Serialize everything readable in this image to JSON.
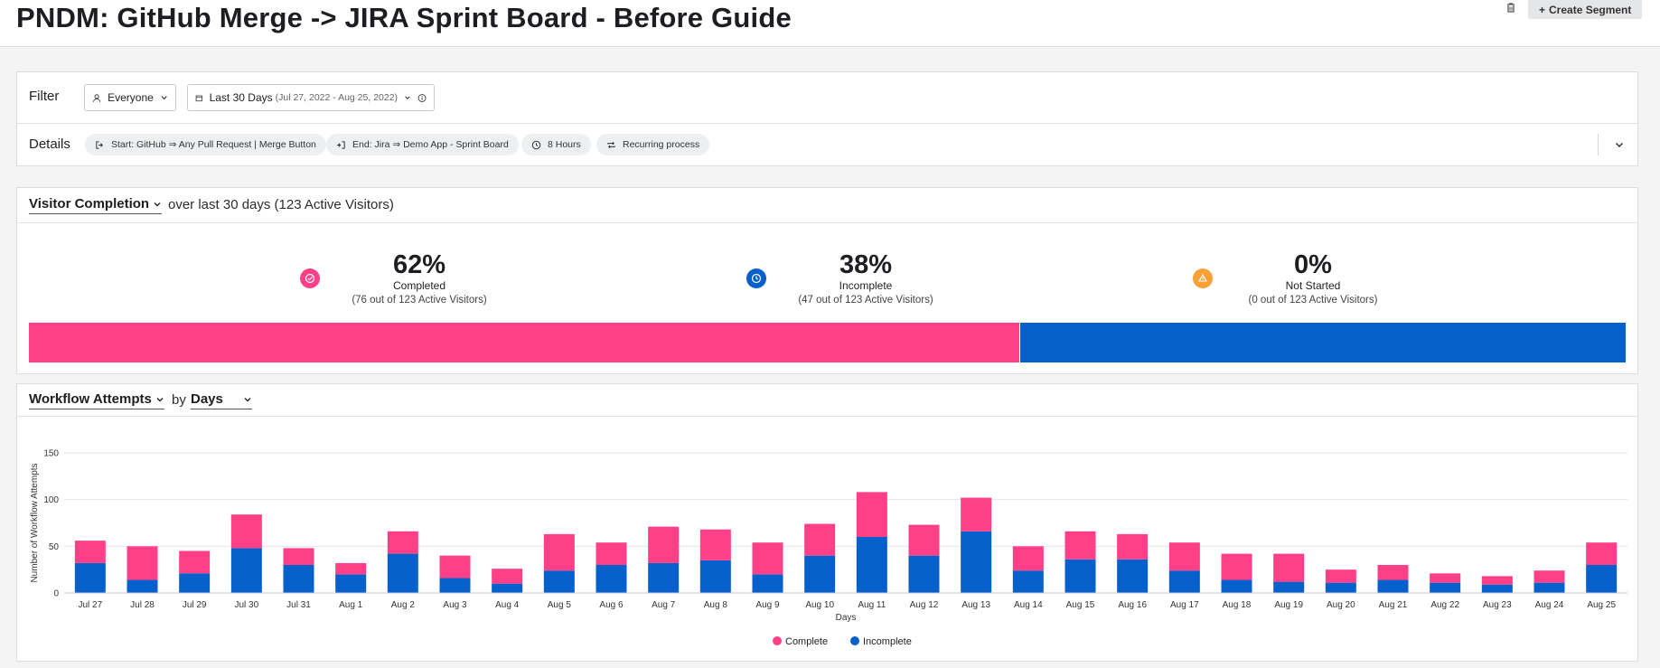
{
  "header": {
    "title": "PNDM: GitHub Merge -> JIRA Sprint Board - Before Guide",
    "create_segment": "Create Segment",
    "trash_icon": "trash-icon"
  },
  "filter": {
    "label": "Filter",
    "segment": "Everyone",
    "date_range": "Last 30 Days",
    "date_detail": "(Jul 27, 2022 - Aug 25, 2022)"
  },
  "details": {
    "label": "Details",
    "start": "Start: GitHub ⇒ Any Pull Request | Merge Button",
    "end": "End: Jira ⇒ Demo App - Sprint Board",
    "duration": "8 Hours",
    "recurring": "Recurring process"
  },
  "visitor_completion": {
    "title": "Visitor Completion",
    "subtitle": "over last 30 days (123 Active Visitors)",
    "stats": [
      {
        "pct": "62%",
        "label": "Completed",
        "sub": "(76 out of 123 Active Visitors)",
        "color": "#ff4088",
        "icon": "check-circle-icon",
        "fraction": 0.62
      },
      {
        "pct": "38%",
        "label": "Incomplete",
        "sub": "(47 out of 123 Active Visitors)",
        "color": "#0660cc",
        "icon": "clock-icon",
        "fraction": 0.38
      },
      {
        "pct": "0%",
        "label": "Not Started",
        "sub": "(0 out of 123 Active Visitors)",
        "color": "#f7a136",
        "icon": "warning-icon",
        "fraction": 0.0
      }
    ]
  },
  "workflow": {
    "title": "Workflow Attempts",
    "by": "by",
    "period": "Days"
  },
  "chart_data": {
    "type": "bar",
    "stacked": true,
    "xlabel": "Days",
    "ylabel": "Number of Workflow Attempts",
    "ylim": [
      0,
      150
    ],
    "yticks": [
      0,
      50,
      100,
      150
    ],
    "grid": true,
    "legend_position": "bottom-center",
    "categories": [
      "Jul 27",
      "Jul 28",
      "Jul 29",
      "Jul 30",
      "Jul 31",
      "Aug 1",
      "Aug 2",
      "Aug 3",
      "Aug 4",
      "Aug 5",
      "Aug 6",
      "Aug 7",
      "Aug 8",
      "Aug 9",
      "Aug 10",
      "Aug 11",
      "Aug 12",
      "Aug 13",
      "Aug 14",
      "Aug 15",
      "Aug 16",
      "Aug 17",
      "Aug 18",
      "Aug 19",
      "Aug 20",
      "Aug 21",
      "Aug 22",
      "Aug 23",
      "Aug 24",
      "Aug 25"
    ],
    "series": [
      {
        "name": "Incomplete",
        "color": "#0660cc",
        "values": [
          32,
          14,
          21,
          48,
          30,
          20,
          42,
          16,
          10,
          24,
          30,
          32,
          35,
          20,
          40,
          60,
          40,
          66,
          24,
          36,
          36,
          24,
          14,
          12,
          11,
          14,
          11,
          9,
          11,
          30
        ]
      },
      {
        "name": "Complete",
        "color": "#ff4088",
        "values": [
          24,
          36,
          24,
          36,
          18,
          12,
          24,
          24,
          16,
          39,
          24,
          39,
          33,
          34,
          34,
          48,
          33,
          36,
          26,
          30,
          27,
          30,
          28,
          30,
          14,
          16,
          10,
          9,
          13,
          24
        ]
      }
    ]
  }
}
